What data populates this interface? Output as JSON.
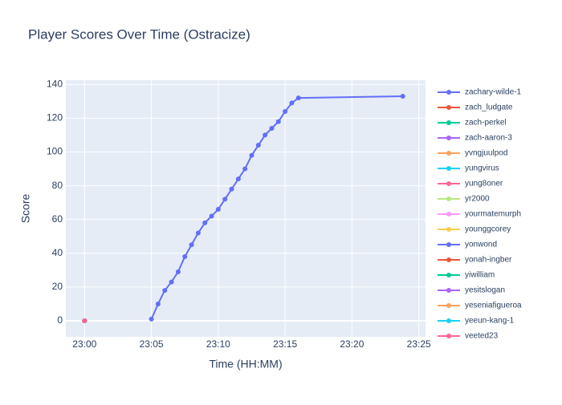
{
  "chart_data": {
    "type": "line",
    "title": "Player Scores Over Time (Ostracize)",
    "x_label": "Time (HH:MM)",
    "y_label": "Score",
    "xlim": [
      1378.6,
      1405.5
    ],
    "xticks": [
      {
        "value": 1380,
        "label": "23:00"
      },
      {
        "value": 1385,
        "label": "23:05"
      },
      {
        "value": 1390,
        "label": "23:10"
      },
      {
        "value": 1395,
        "label": "23:15"
      },
      {
        "value": 1400,
        "label": "23:20"
      },
      {
        "value": 1405,
        "label": "23:25"
      }
    ],
    "ylim": [
      -9.5,
      142.5
    ],
    "yticks": [
      0,
      20,
      40,
      60,
      80,
      100,
      120,
      140
    ],
    "grid": true,
    "series": [
      {
        "name": "zachary-wilde-1",
        "color": "#636efa",
        "x": [
          1385.0,
          1385.5,
          1386.0,
          1386.5,
          1387.0,
          1387.5,
          1388.0,
          1388.5,
          1389.0,
          1389.5,
          1390.0,
          1390.5,
          1391.0,
          1391.5,
          1392.0,
          1392.5,
          1393.0,
          1393.5,
          1394.0,
          1394.5,
          1395.0,
          1395.5,
          1396.0,
          1403.8
        ],
        "values": [
          1,
          10,
          18,
          23,
          29,
          38,
          45,
          52,
          58,
          62,
          66,
          72,
          78,
          84,
          90,
          98,
          104,
          110,
          114,
          118,
          124,
          129,
          132,
          133
        ]
      },
      {
        "name": "zach_ludgate",
        "color": "#EF553B",
        "x": [
          1380
        ],
        "values": [
          0
        ]
      },
      {
        "name": "zach-perkel",
        "color": "#00cc96",
        "x": [
          1380
        ],
        "values": [
          0
        ]
      },
      {
        "name": "zach-aaron-3",
        "color": "#ab63fa",
        "x": [
          1380
        ],
        "values": [
          0
        ]
      },
      {
        "name": "yvngjuulpod",
        "color": "#FFA15A",
        "x": [
          1380
        ],
        "values": [
          0
        ]
      },
      {
        "name": "yungvirus",
        "color": "#19d3f3",
        "x": [
          1380
        ],
        "values": [
          0
        ]
      },
      {
        "name": "yung8oner",
        "color": "#FF6692",
        "x": [
          1380
        ],
        "values": [
          0
        ]
      },
      {
        "name": "yr2000",
        "color": "#B6E880",
        "x": [
          1380
        ],
        "values": [
          0
        ]
      },
      {
        "name": "yourmatemurph",
        "color": "#FF97FF",
        "x": [
          1380
        ],
        "values": [
          0
        ]
      },
      {
        "name": "younggcorey",
        "color": "#FECB52",
        "x": [
          1380
        ],
        "values": [
          0
        ]
      },
      {
        "name": "yonwond",
        "color": "#636efa",
        "x": [
          1380
        ],
        "values": [
          0
        ]
      },
      {
        "name": "yonah-ingber",
        "color": "#EF553B",
        "x": [
          1380
        ],
        "values": [
          0
        ]
      },
      {
        "name": "yiwilliam",
        "color": "#00cc96",
        "x": [
          1380
        ],
        "values": [
          0
        ]
      },
      {
        "name": "yesitslogan",
        "color": "#ab63fa",
        "x": [
          1380
        ],
        "values": [
          0
        ]
      },
      {
        "name": "yeseniafigueroa",
        "color": "#FFA15A",
        "x": [
          1380
        ],
        "values": [
          0
        ]
      },
      {
        "name": "yeeun-kang-1",
        "color": "#19d3f3",
        "x": [
          1380
        ],
        "values": [
          0
        ]
      },
      {
        "name": "yeeted23",
        "color": "#FF6692",
        "x": [
          1380
        ],
        "values": [
          0
        ]
      }
    ]
  }
}
